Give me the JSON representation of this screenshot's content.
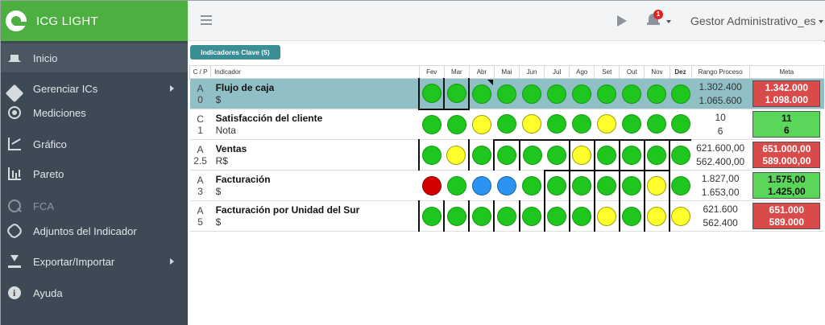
{
  "app": {
    "title": "ICG LIGHT"
  },
  "sidebar": {
    "items": [
      {
        "label": "Inicio",
        "icon": "home-icon"
      },
      {
        "label": "Gerenciar ICs",
        "icon": "wrench-icon"
      },
      {
        "label": "Mediciones",
        "icon": "target-icon"
      },
      {
        "label": "Gráfico",
        "icon": "line-chart-icon"
      },
      {
        "label": "Pareto",
        "icon": "bar-chart-icon"
      },
      {
        "label": "FCA",
        "icon": "search-icon"
      },
      {
        "label": "Adjuntos del Indicador",
        "icon": "paperclip-icon"
      },
      {
        "label": "Exportar/Importar",
        "icon": "download-icon"
      },
      {
        "label": "Ayuda",
        "icon": "info-icon"
      }
    ]
  },
  "header": {
    "notifications_count": "1",
    "user": "Gestor Administrativo_es"
  },
  "main": {
    "tab_label": "Indicadores Clave (5)",
    "columns": {
      "cp": "C / P",
      "indicador": "Indicador",
      "months": [
        "Fev",
        "Mar",
        "Abr",
        "Mai",
        "Jun",
        "Jul",
        "Ago",
        "Set",
        "Out",
        "Nov",
        "Dez"
      ],
      "rango": "Rango Proceso",
      "meta": "Meta"
    },
    "rows": [
      {
        "c": "A",
        "p": "0",
        "name": "Flujo de caja",
        "unit": "$",
        "statuses": [
          "green",
          "green",
          "green",
          "green",
          "green",
          "green",
          "green",
          "green",
          "green",
          "green",
          "green"
        ],
        "range_high": "1.302.400",
        "range_low": "1.065.600",
        "meta_high": "1.342.000",
        "meta_low": "1.098.000",
        "meta_color": "red"
      },
      {
        "c": "C",
        "p": "1",
        "name": "Satisfacción del cliente",
        "unit": "Nota",
        "statuses": [
          "green",
          "green",
          "yellow",
          "green",
          "yellow",
          "green",
          "green",
          "yellow",
          "green",
          "green",
          "green"
        ],
        "range_high": "10",
        "range_low": "6",
        "meta_high": "11",
        "meta_low": "6",
        "meta_color": "green"
      },
      {
        "c": "A",
        "p": "2.5",
        "name": "Ventas",
        "unit": "R$",
        "statuses": [
          "green",
          "yellow",
          "green",
          "green",
          "green",
          "green",
          "yellow",
          "green",
          "green",
          "green",
          "green"
        ],
        "range_high": "621.600,00",
        "range_low": "562.400,00",
        "meta_high": "651.000,00",
        "meta_low": "589.000,00",
        "meta_color": "red"
      },
      {
        "c": "A",
        "p": "3",
        "name": "Facturación",
        "unit": "$",
        "statuses": [
          "red",
          "green",
          "blue",
          "blue",
          "green",
          "green",
          "green",
          "green",
          "green",
          "yellow",
          "green"
        ],
        "range_high": "1.827,00",
        "range_low": "1.653,00",
        "meta_high": "1.575,00",
        "meta_low": "1.425,00",
        "meta_color": "green"
      },
      {
        "c": "A",
        "p": "5",
        "name": "Facturación por Unidad del Sur",
        "unit": "$",
        "statuses": [
          "green",
          "green",
          "green",
          "green",
          "green",
          "green",
          "green",
          "yellow",
          "green",
          "yellow",
          "yellow"
        ],
        "range_high": "621.600",
        "range_low": "562.400",
        "meta_high": "651.000",
        "meta_low": "589.000",
        "meta_color": "red"
      }
    ]
  },
  "colors": {
    "brand_green": "#4caf3f",
    "sidebar_bg": "#3d4a55",
    "tab_teal": "#3a8e96",
    "row_highlight": "#91bfc6",
    "status_green": "#1ec61e",
    "status_yellow": "#ffff2e",
    "status_red": "#d40000",
    "status_blue": "#2b93f2"
  }
}
